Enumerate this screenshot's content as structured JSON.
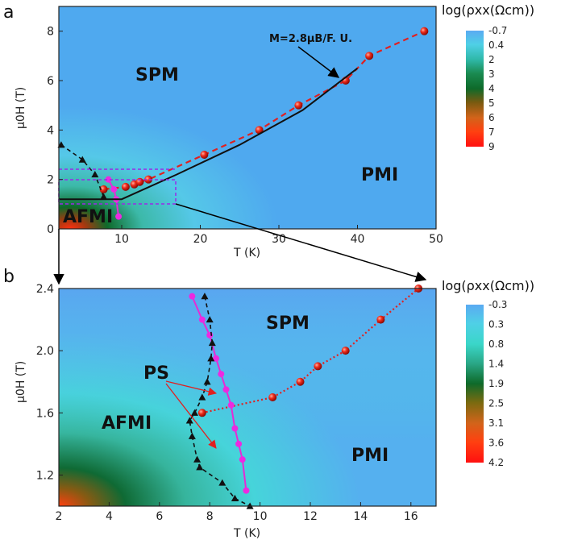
{
  "chart_data": [
    {
      "panel": "a",
      "type": "heatmap",
      "xlabel": "T (K)",
      "ylabel": "μ0H (T)",
      "xlim": [
        2,
        50
      ],
      "ylim": [
        0,
        9
      ],
      "xticks": [
        "10",
        "20",
        "30",
        "40",
        "50"
      ],
      "yticks": [
        "0",
        "2",
        "4",
        "6",
        "8"
      ],
      "colorbar": {
        "title": "log(ρxx(Ωcm))",
        "ticks": [
          "-0.7",
          "0.4",
          "2",
          "3",
          "4",
          "5",
          "6",
          "7",
          "9"
        ],
        "colors": [
          "#5aaaf2",
          "#4fd0e6",
          "#2fb8a8",
          "#1a8a50",
          "#0e6a2a",
          "#7a5a10",
          "#d2641a",
          "#ff4010",
          "#ff1010"
        ]
      },
      "region_labels": [
        "SPM",
        "PMI",
        "AFMI"
      ],
      "annotation": "M=2.8μB/F. U.",
      "series": [
        {
          "kind": "red-dashed-circles",
          "x": [
            7.7,
            10.5,
            11.6,
            12.3,
            13.4,
            20.5,
            27.5,
            32.5,
            38.5,
            41.5,
            48.5
          ],
          "y": [
            1.6,
            1.7,
            1.8,
            1.9,
            2.0,
            3.0,
            4.0,
            5.0,
            6.0,
            7.0,
            8.0
          ]
        },
        {
          "kind": "magenta-circles",
          "x": [
            8.3,
            9.0,
            9.3,
            9.6
          ],
          "y": [
            2.0,
            1.6,
            1.2,
            0.5
          ]
        },
        {
          "kind": "black-dashed-triangles",
          "x": [
            2.3,
            5.0,
            6.6,
            7.7
          ],
          "y": [
            3.4,
            2.8,
            2.2,
            1.3
          ]
        },
        {
          "kind": "black-solid-line",
          "x": [
            2,
            10,
            17,
            25,
            33,
            40
          ],
          "y": [
            1.2,
            1.2,
            2.2,
            3.4,
            4.8,
            6.5
          ]
        }
      ]
    },
    {
      "panel": "b",
      "type": "heatmap",
      "xlabel": "T (K)",
      "ylabel": "μ0H (T)",
      "xlim": [
        2,
        17
      ],
      "ylim": [
        1.0,
        2.4
      ],
      "xticks": [
        "2",
        "4",
        "6",
        "8",
        "10",
        "12",
        "14",
        "16"
      ],
      "yticks": [
        "1.2",
        "1.6",
        "2.0",
        "2.4"
      ],
      "colorbar": {
        "title": "log(ρxx(Ωcm))",
        "ticks": [
          "-0.3",
          "0.3",
          "0.8",
          "1.4",
          "1.9",
          "2.5",
          "3.1",
          "3.6",
          "4.2"
        ],
        "colors": [
          "#5aaaf2",
          "#4fd0e6",
          "#3ad6c8",
          "#2aa888",
          "#0e6a2a",
          "#7a6a10",
          "#d2641a",
          "#ff4010",
          "#ff1010"
        ]
      },
      "region_labels": [
        "SPM",
        "AFMI",
        "PMI"
      ],
      "annotation": "PS",
      "series": [
        {
          "kind": "red-dotted-circles",
          "x": [
            7.7,
            10.5,
            11.6,
            12.3,
            13.4,
            14.8,
            16.3
          ],
          "y": [
            1.6,
            1.7,
            1.8,
            1.9,
            2.0,
            2.2,
            2.4
          ]
        },
        {
          "kind": "magenta-circles",
          "x": [
            7.3,
            7.7,
            8.0,
            8.25,
            8.45,
            8.65,
            8.85,
            9.0,
            9.15,
            9.3,
            9.45
          ],
          "y": [
            2.35,
            2.2,
            2.1,
            1.95,
            1.85,
            1.75,
            1.65,
            1.5,
            1.4,
            1.3,
            1.1
          ]
        },
        {
          "kind": "black-dashed-triangles",
          "x": [
            7.8,
            8.0,
            8.1,
            8.05,
            7.9,
            7.7,
            7.4,
            7.2,
            7.3,
            7.5,
            7.6,
            8.5,
            9.0,
            9.6
          ],
          "y": [
            2.35,
            2.2,
            2.05,
            1.95,
            1.8,
            1.7,
            1.6,
            1.55,
            1.45,
            1.3,
            1.25,
            1.15,
            1.05,
            1.0
          ]
        }
      ]
    }
  ]
}
